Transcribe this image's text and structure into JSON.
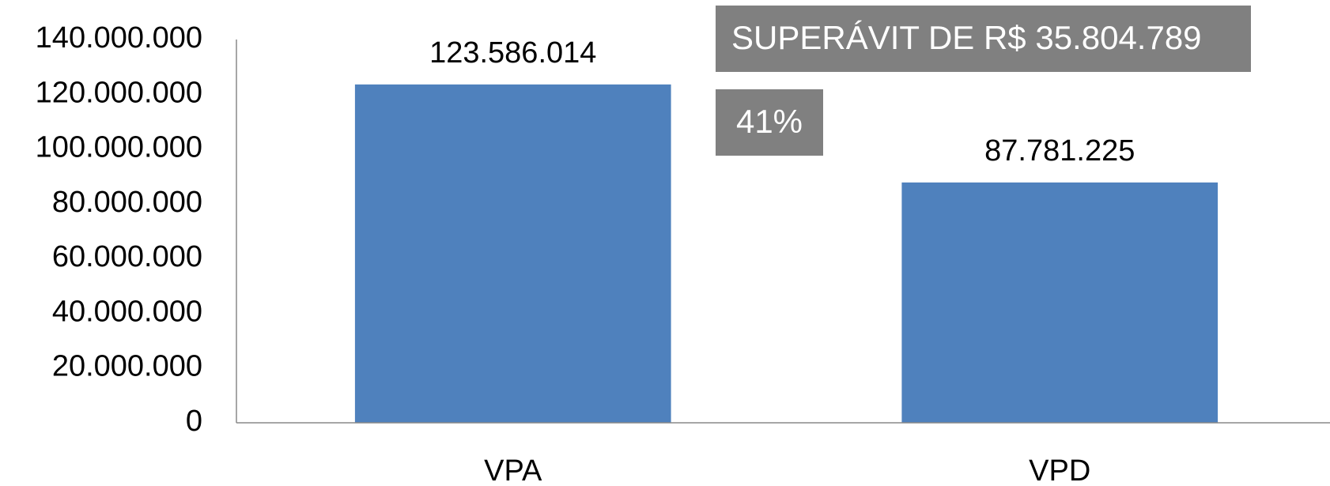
{
  "chart_data": {
    "type": "bar",
    "categories": [
      "VPA",
      "VPD"
    ],
    "values": [
      123586014,
      87781225
    ],
    "value_labels": [
      "123.586.014",
      "87.781.225"
    ],
    "color": "#4f81bd",
    "ylim": [
      0,
      140000000
    ],
    "yticks": [
      0,
      {
        "value": 20000000,
        "label": "20.000.000"
      },
      {
        "value": 40000000,
        "label": "40.000.000"
      },
      {
        "value": 60000000,
        "label": "60.000.000"
      },
      {
        "value": 80000000,
        "label": "80.000.000"
      },
      {
        "value": 100000000,
        "label": "100.000.000"
      },
      {
        "value": 120000000,
        "label": "120.000.000"
      },
      {
        "value": 140000000,
        "label": "140.000.000"
      }
    ],
    "grid": false,
    "annotations": [
      "SUPERÁVIT DE R$ 35.804.789",
      "41%"
    ]
  }
}
